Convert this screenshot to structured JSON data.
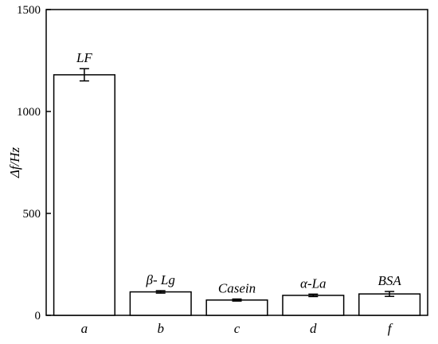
{
  "chart_data": {
    "type": "bar",
    "title": "",
    "xlabel": "",
    "ylabel": "Δf/Hz",
    "ylim": [
      0,
      1500
    ],
    "yticks": [
      0,
      500,
      1000,
      1500
    ],
    "categories": [
      "a",
      "b",
      "c",
      "d",
      "f"
    ],
    "values": [
      1180,
      115,
      75,
      98,
      105
    ],
    "errors": [
      30,
      6,
      5,
      6,
      12
    ],
    "bar_labels": [
      "LF",
      "β- Lg",
      "Casein",
      "α-La",
      "BSA"
    ],
    "grid": false,
    "colors": {
      "bar_fill": "#ffffff",
      "bar_stroke": "#000000",
      "axis": "#000000"
    }
  }
}
